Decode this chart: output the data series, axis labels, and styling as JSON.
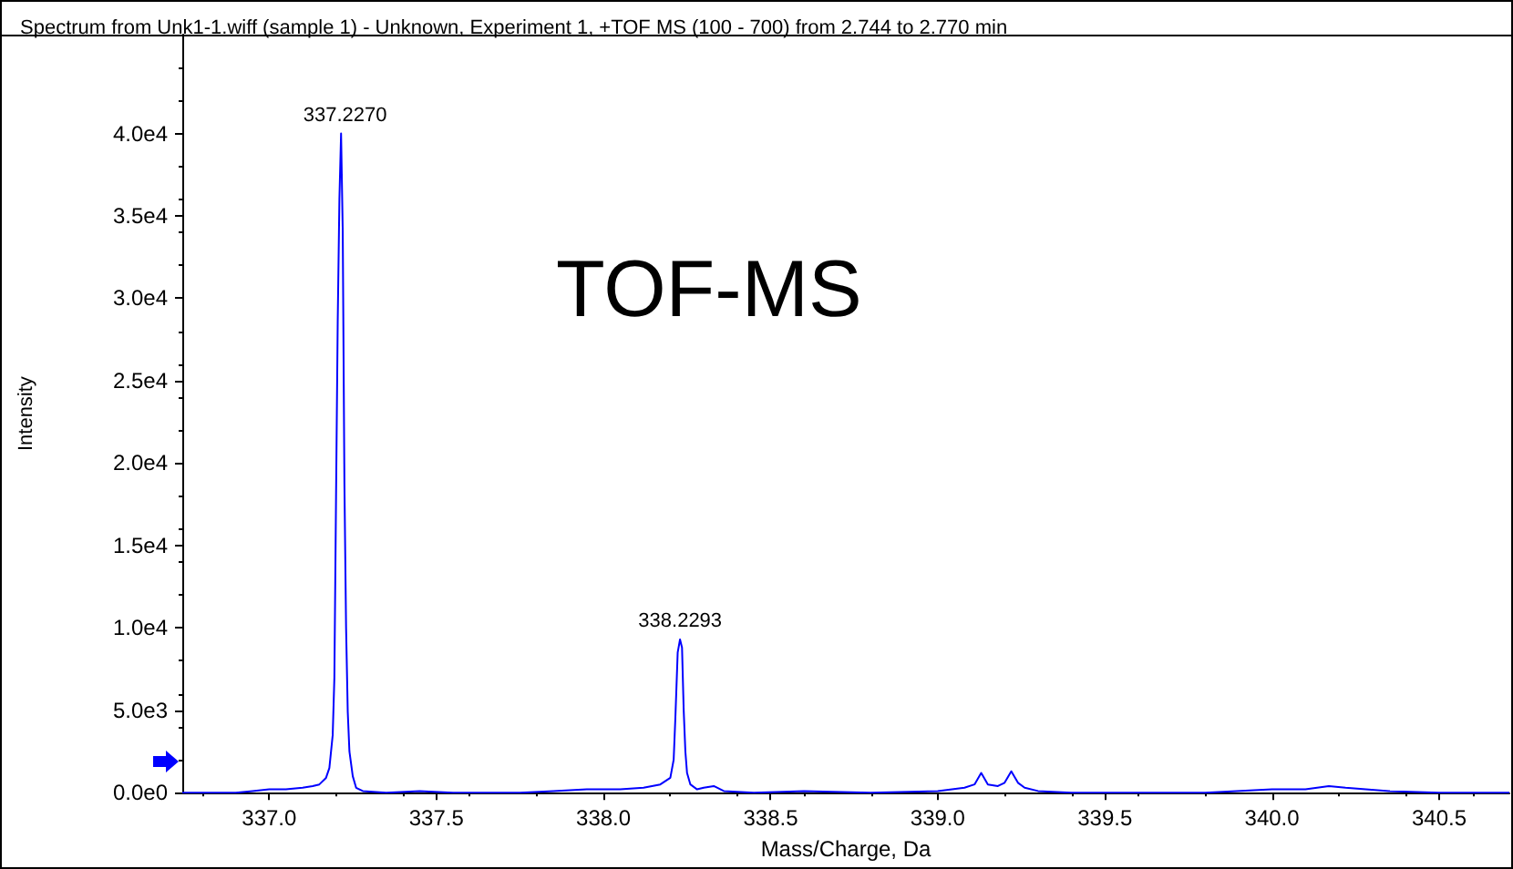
{
  "chart_data": {
    "type": "line",
    "title": "Spectrum from Unk1-1.wiff (sample 1) - Unknown, Experiment 1, +TOF MS (100 - 700) from 2.744 to 2.770 min",
    "xlabel": "Mass/Charge, Da",
    "ylabel": "Intensity",
    "annotations": [
      {
        "text": "337.2270",
        "x": 337.227,
        "y": 40000
      },
      {
        "text": "338.2293",
        "x": 338.2293,
        "y": 9300
      },
      "TOF-MS"
    ],
    "series": [
      {
        "color": "#0000ff",
        "x": [
          336.74,
          336.8,
          336.9,
          336.95,
          337.0,
          337.05,
          337.1,
          337.13,
          337.15,
          337.17,
          337.18,
          337.19,
          337.195,
          337.2,
          337.205,
          337.21,
          337.215,
          337.22,
          337.225,
          337.23,
          337.235,
          337.24,
          337.25,
          337.26,
          337.28,
          337.35,
          337.45,
          337.55,
          337.65,
          337.75,
          337.85,
          337.95,
          338.05,
          338.12,
          338.17,
          338.2,
          338.21,
          338.215,
          338.222,
          338.229,
          338.235,
          338.24,
          338.245,
          338.25,
          338.26,
          338.28,
          338.3,
          338.33,
          338.36,
          338.45,
          338.6,
          338.8,
          339.0,
          339.08,
          339.11,
          339.13,
          339.15,
          339.18,
          339.2,
          339.22,
          339.24,
          339.26,
          339.3,
          339.4,
          339.6,
          339.8,
          340.0,
          340.1,
          340.17,
          340.22,
          340.35,
          340.5,
          340.71
        ],
        "values": [
          0,
          0,
          0,
          100,
          200,
          200,
          300,
          400,
          500,
          900,
          1500,
          3500,
          7000,
          18000,
          28600,
          36000,
          40000,
          34100,
          18800,
          10000,
          4900,
          2500,
          1000,
          300,
          100,
          0,
          100,
          0,
          0,
          0,
          100,
          200,
          200,
          300,
          500,
          900,
          2000,
          4500,
          8500,
          9300,
          8800,
          5000,
          2500,
          1200,
          500,
          200,
          300,
          400,
          100,
          0,
          100,
          0,
          100,
          300,
          500,
          1200,
          500,
          400,
          600,
          1300,
          600,
          300,
          100,
          0,
          0,
          0,
          200,
          200,
          400,
          300,
          100,
          0,
          0
        ]
      }
    ],
    "xlim": [
      336.74,
      340.71
    ],
    "ylim": [
      0,
      46000
    ],
    "xticks": [
      {
        "value": 337,
        "label": "337.0"
      },
      {
        "value": 337.5,
        "label": "337.5"
      },
      {
        "value": 338,
        "label": "338.0"
      },
      {
        "value": 338.5,
        "label": "338.5"
      },
      {
        "value": 339,
        "label": "339.0"
      },
      {
        "value": 339.5,
        "label": "339.5"
      },
      {
        "value": 340,
        "label": "340.0"
      },
      {
        "value": 340.5,
        "label": "340.5"
      }
    ],
    "yticks": [
      {
        "value": 0,
        "label": "0.0e0"
      },
      {
        "value": 5000,
        "label": "5.0e3"
      },
      {
        "value": 10000,
        "label": "1.0e4"
      },
      {
        "value": 15000,
        "label": "1.5e4"
      },
      {
        "value": 20000,
        "label": "2.0e4"
      },
      {
        "value": 25000,
        "label": "2.5e4"
      },
      {
        "value": 30000,
        "label": "3.0e4"
      },
      {
        "value": 35000,
        "label": "3.5e4"
      },
      {
        "value": 40000,
        "label": "4.0e4"
      }
    ],
    "grid": false,
    "marker": "none",
    "line_style": "solid"
  }
}
